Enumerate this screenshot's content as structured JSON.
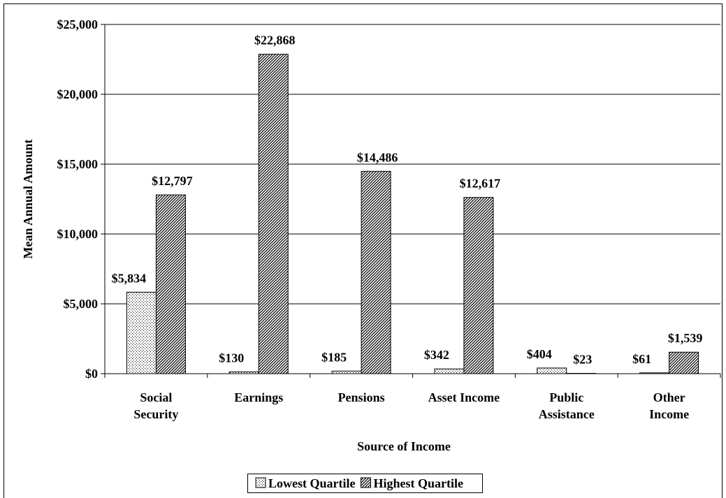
{
  "chart_data": {
    "type": "bar",
    "x_label": "Source of Income",
    "y_label": "Mean Annual Amount",
    "categories": [
      "Social\nSecurity",
      "Earnings",
      "Pensions",
      "Asset Income",
      "Public\nAssistance",
      "Other\nIncome"
    ],
    "series": [
      {
        "name": "Lowest Quartile",
        "color": "#000000",
        "values": [
          5834,
          130,
          185,
          342,
          404,
          61
        ],
        "value_labels": [
          "$5,834",
          "$130",
          "$185",
          "$342",
          "$404",
          "$61"
        ]
      },
      {
        "name": "Highest Quartile",
        "color": "#000000",
        "values": [
          12797,
          22868,
          14486,
          12617,
          23,
          1539
        ],
        "value_labels": [
          "$12,797",
          "$22,868",
          "$14,486",
          "$12,617",
          "$23",
          "$1,539"
        ]
      }
    ],
    "ylim": [
      0,
      25000
    ],
    "yticks": [
      {
        "value": 0,
        "label": "$0"
      },
      {
        "value": 5000,
        "label": "$5,000"
      },
      {
        "value": 10000,
        "label": "$10,000"
      },
      {
        "value": 15000,
        "label": "$15,000"
      },
      {
        "value": 20000,
        "label": "$20,000"
      },
      {
        "value": 25000,
        "label": "$25,000"
      }
    ],
    "grid": true
  }
}
